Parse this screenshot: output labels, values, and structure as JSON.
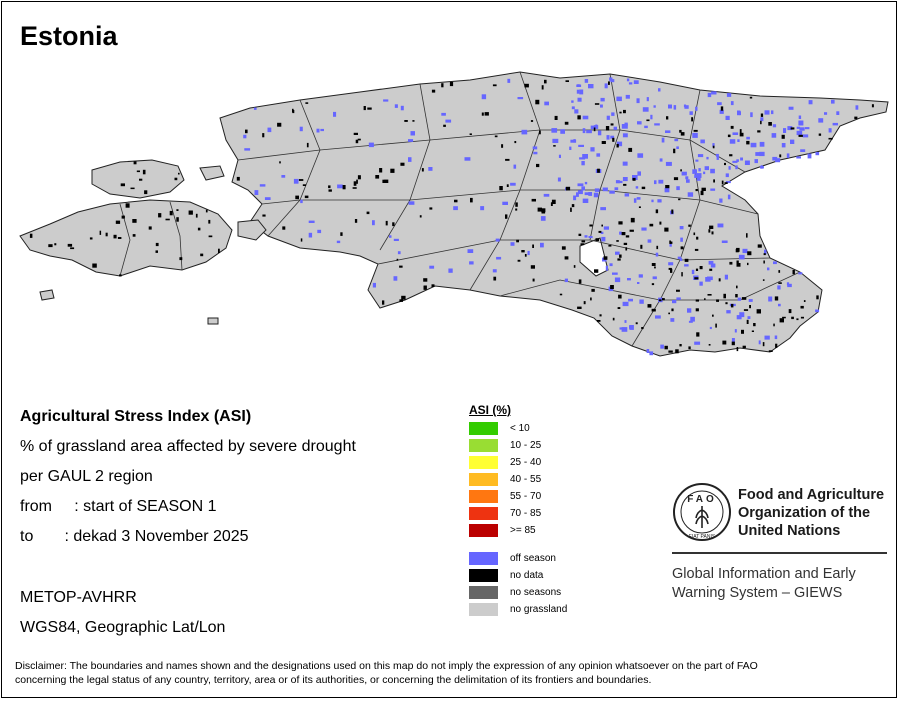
{
  "title": "Estonia",
  "info": {
    "heading": "Agricultural Stress Index (ASI)",
    "line1": "% of grassland area affected by severe drought",
    "line2": "per GAUL 2 region",
    "from": "from     : start of SEASON 1",
    "to": "to       : dekad 3 November 2025",
    "sensor": "METOP-AVHRR",
    "projection": "WGS84, Geographic Lat/Lon"
  },
  "legend": {
    "title": "ASI (%)",
    "classes": [
      {
        "label": "< 10",
        "color": "#33cc00"
      },
      {
        "label": "10 - 25",
        "color": "#99dd33"
      },
      {
        "label": "25 - 40",
        "color": "#ffff33"
      },
      {
        "label": "40 - 55",
        "color": "#ffbb22"
      },
      {
        "label": "55 - 70",
        "color": "#ff7711"
      },
      {
        "label": "70 - 85",
        "color": "#ee3311"
      },
      {
        "label": ">= 85",
        "color": "#bb0000"
      }
    ],
    "other": [
      {
        "label": "off season",
        "color": "#6666ff"
      },
      {
        "label": "no data",
        "color": "#000000"
      },
      {
        "label": "no seasons",
        "color": "#666666"
      },
      {
        "label": "no grassland",
        "color": "#cccccc"
      }
    ]
  },
  "fao": {
    "line1": "Food and Agriculture",
    "line2": "Organization of the",
    "line3": "United Nations",
    "emblem_text": "FAO",
    "motto": "FIAT PANIS"
  },
  "giews": {
    "line1": "Global Information and Early",
    "line2": "Warning System – GIEWS"
  },
  "disclaimer": {
    "line1": "Disclaimer: The boundaries and names shown and the designations used on this map do not imply the expression of any opinion whatsoever on the part of FAO",
    "line2": "concerning the legal status of any country, territory, area or of its authorities, or concerning the delimitation of its frontiers and boundaries."
  },
  "map_colors": {
    "land": "#cccccc",
    "off_season": "#6666ff",
    "no_data": "#000000"
  }
}
